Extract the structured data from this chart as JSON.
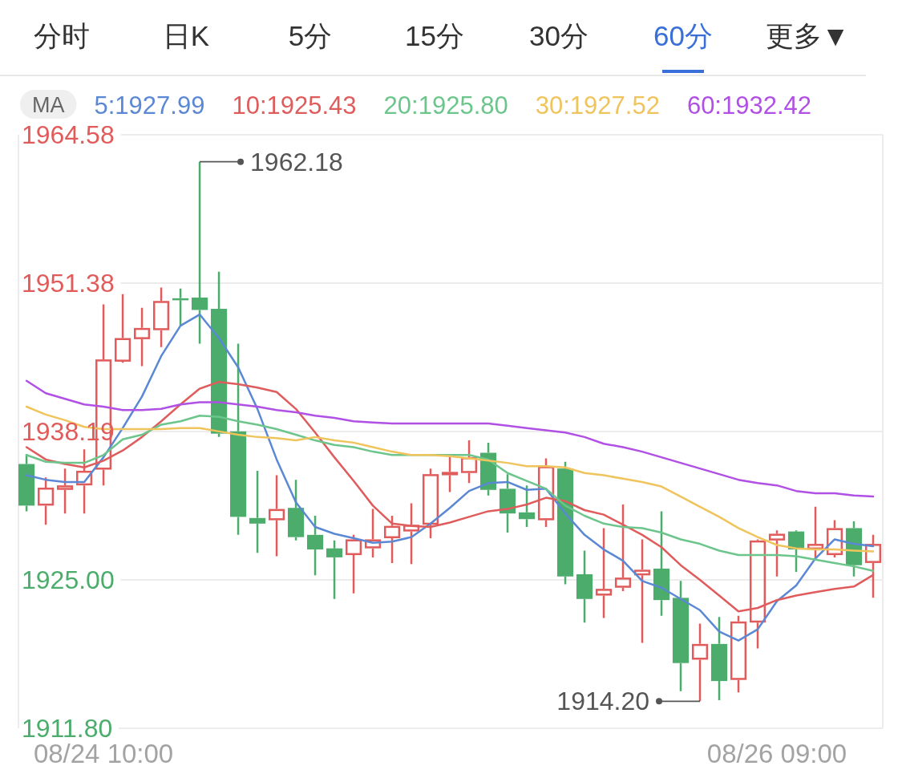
{
  "chart_data": {
    "type": "candlestick",
    "categories": [
      null,
      null,
      null,
      null,
      "08/24 10:00",
      null,
      null,
      null,
      null,
      null,
      null,
      null,
      null,
      null,
      null,
      null,
      null,
      null,
      null,
      null,
      null,
      null,
      null,
      null,
      null,
      null,
      null,
      null,
      null,
      null,
      null,
      null,
      null,
      null,
      null,
      null,
      null,
      null,
      null,
      "08/26 09:00",
      null,
      null,
      null,
      null,
      null
    ],
    "ohlc": [
      [
        1935.3,
        1936.2,
        1931.1,
        1931.6
      ],
      [
        1931.6,
        1934.1,
        1929.9,
        1933.2
      ],
      [
        1933.0,
        1934.9,
        1930.9,
        1933.4
      ],
      [
        1933.4,
        1936.6,
        1930.9,
        1934.7
      ],
      [
        1934.8,
        1949.5,
        1933.4,
        1944.6
      ],
      [
        1944.4,
        1950.4,
        1944.3,
        1946.5
      ],
      [
        1946.4,
        1949.2,
        1944.0,
        1947.4
      ],
      [
        1947.2,
        1951.0,
        1945.7,
        1949.8
      ],
      [
        1950.0,
        1950.9,
        1947.6,
        1949.9
      ],
      [
        1950.1,
        1962.18,
        1946.0,
        1949.0
      ],
      [
        1949.1,
        1952.4,
        1937.7,
        1938.0
      ],
      [
        1938.2,
        1946.0,
        1929.0,
        1930.6
      ],
      [
        1930.5,
        1934.7,
        1927.4,
        1930.0
      ],
      [
        1930.3,
        1934.3,
        1927.1,
        1931.3
      ],
      [
        1931.4,
        1933.9,
        1928.5,
        1928.8
      ],
      [
        1929.0,
        1930.7,
        1925.4,
        1927.7
      ],
      [
        1927.8,
        1928.5,
        1923.3,
        1927.0
      ],
      [
        1927.2,
        1929.0,
        1923.8,
        1928.6
      ],
      [
        1927.8,
        1931.3,
        1927.0,
        1928.6
      ],
      [
        1928.7,
        1930.7,
        1926.5,
        1929.8
      ],
      [
        1929.3,
        1931.8,
        1926.4,
        1929.9
      ],
      [
        1929.9,
        1934.9,
        1928.7,
        1934.4
      ],
      [
        1934.3,
        1936.1,
        1932.8,
        1934.6
      ],
      [
        1934.5,
        1937.4,
        1933.6,
        1935.9
      ],
      [
        1936.3,
        1937.2,
        1932.5,
        1933.0
      ],
      [
        1933.1,
        1934.4,
        1929.2,
        1930.9
      ],
      [
        1931.0,
        1933.4,
        1929.7,
        1930.4
      ],
      [
        1930.3,
        1935.8,
        1929.7,
        1935.1
      ],
      [
        1934.9,
        1935.5,
        1924.6,
        1925.3
      ],
      [
        1925.5,
        1927.6,
        1921.2,
        1923.3
      ],
      [
        1923.6,
        1929.6,
        1921.6,
        1924.2
      ],
      [
        1924.3,
        1931.7,
        1924.0,
        1925.2
      ],
      [
        1925.4,
        1928.6,
        1919.4,
        1925.9
      ],
      [
        1926.0,
        1931.1,
        1921.8,
        1923.2
      ],
      [
        1923.4,
        1924.9,
        1915.1,
        1917.6
      ],
      [
        1917.9,
        1921.1,
        1914.2,
        1919.3
      ],
      [
        1919.3,
        1921.7,
        1914.3,
        1916.0
      ],
      [
        1916.1,
        1921.8,
        1915.0,
        1921.3
      ],
      [
        1921.2,
        1928.6,
        1918.9,
        1928.5
      ],
      [
        1928.5,
        1929.4,
        1925.3,
        1929.1
      ],
      [
        1929.3,
        1929.4,
        1925.7,
        1927.7
      ],
      [
        1927.7,
        1931.5,
        1926.9,
        1928.2
      ],
      [
        1927.2,
        1930.3,
        1927.0,
        1929.6
      ],
      [
        1929.6,
        1930.2,
        1925.3,
        1926.3
      ],
      [
        1926.5,
        1929.0,
        1923.4,
        1928.2
      ]
    ],
    "colors": [
      "#4cac6c",
      "#e15b5b",
      "#e15b5b",
      "#e15b5b",
      "#e15b5b",
      "#e15b5b",
      "#e15b5b",
      "#e15b5b",
      "#4cac6c",
      "#4cac6c",
      "#4cac6c",
      "#4cac6c",
      "#4cac6c",
      "#e15b5b",
      "#4cac6c",
      "#4cac6c",
      "#4cac6c",
      "#e15b5b",
      "#e15b5b",
      "#e15b5b",
      "#e15b5b",
      "#e15b5b",
      "#e15b5b",
      "#e15b5b",
      "#4cac6c",
      "#4cac6c",
      "#4cac6c",
      "#e15b5b",
      "#4cac6c",
      "#4cac6c",
      "#e15b5b",
      "#e15b5b",
      "#e15b5b",
      "#4cac6c",
      "#4cac6c",
      "#e15b5b",
      "#4cac6c",
      "#e15b5b",
      "#e15b5b",
      "#e15b5b",
      "#4cac6c",
      "#e15b5b",
      "#e15b5b",
      "#4cac6c",
      "#e15b5b"
    ],
    "series": [
      {
        "name": "5:1927.99",
        "type": "line",
        "color": "#5b88d4",
        "values": [
          1934.3,
          1933.9,
          1933.7,
          1933.7,
          1935.9,
          1938.5,
          1941.3,
          1944.9,
          1947.6,
          1948.6,
          1946.5,
          1943.9,
          1940.2,
          1935.7,
          1931.9,
          1929.7,
          1929.1,
          1928.7,
          1928.3,
          1928.4,
          1928.8,
          1930.0,
          1931.4,
          1932.9,
          1933.6,
          1933.7,
          1933.0,
          1933.1,
          1930.9,
          1929.0,
          1927.7,
          1926.7,
          1924.9,
          1924.3,
          1923.3,
          1922.3,
          1920.4,
          1919.6,
          1920.6,
          1923.1,
          1924.5,
          1926.9,
          1928.6,
          1928.2,
          1927.99
        ]
      },
      {
        "name": "10:1925.43",
        "type": "line",
        "color": "#e05c5c",
        "values": [
          1936.8,
          1935.7,
          1935.3,
          1935.0,
          1935.6,
          1936.5,
          1937.7,
          1939.1,
          1940.6,
          1942.0,
          1942.6,
          1942.4,
          1942.1,
          1941.7,
          1940.2,
          1938.1,
          1935.9,
          1933.8,
          1931.6,
          1930.0,
          1929.8,
          1929.7,
          1930.1,
          1930.6,
          1931.1,
          1931.3,
          1931.7,
          1932.3,
          1932.0,
          1931.2,
          1930.8,
          1929.9,
          1929.0,
          1927.9,
          1926.3,
          1925.0,
          1923.6,
          1922.2,
          1922.5,
          1923.2,
          1923.6,
          1923.9,
          1924.2,
          1924.4,
          1925.43
        ]
      },
      {
        "name": "20:1925.80",
        "type": "line",
        "color": "#6cc68c",
        "values": [
          1936.1,
          1935.5,
          1935.4,
          1935.4,
          1936.1,
          1937.5,
          1937.9,
          1938.8,
          1939.1,
          1939.6,
          1939.5,
          1939.1,
          1938.8,
          1938.4,
          1937.9,
          1937.4,
          1937.0,
          1936.8,
          1936.4,
          1936.1,
          1936.1,
          1936.1,
          1936.1,
          1936.1,
          1935.7,
          1934.5,
          1933.8,
          1933.1,
          1931.6,
          1930.7,
          1930.0,
          1929.7,
          1929.6,
          1929.2,
          1928.6,
          1928.2,
          1927.6,
          1927.2,
          1927.2,
          1927.2,
          1927.1,
          1926.8,
          1926.5,
          1926.2,
          1925.8
        ]
      },
      {
        "name": "30:1927.52",
        "type": "line",
        "color": "#f0c45c",
        "values": [
          1940.4,
          1939.7,
          1939.2,
          1938.6,
          1938.4,
          1938.4,
          1938.4,
          1938.4,
          1938.5,
          1938.5,
          1938.2,
          1937.9,
          1937.7,
          1937.6,
          1937.4,
          1937.7,
          1937.4,
          1937.2,
          1936.8,
          1936.4,
          1936.1,
          1936.1,
          1936.0,
          1935.8,
          1935.6,
          1935.4,
          1935.1,
          1935.1,
          1935.0,
          1934.5,
          1934.3,
          1934.0,
          1933.7,
          1933.3,
          1932.4,
          1931.5,
          1930.6,
          1929.6,
          1928.8,
          1928.1,
          1927.8,
          1927.7,
          1927.7,
          1927.6,
          1927.52
        ]
      },
      {
        "name": "60:1932.42",
        "type": "line",
        "color": "#b050e4",
        "values": [
          1942.7,
          1941.6,
          1941.1,
          1940.6,
          1940.4,
          1940.1,
          1940.1,
          1940.2,
          1940.6,
          1940.8,
          1940.8,
          1940.6,
          1940.4,
          1940.1,
          1939.9,
          1939.6,
          1939.4,
          1939.1,
          1939.0,
          1938.9,
          1938.9,
          1938.9,
          1938.9,
          1938.9,
          1938.9,
          1938.7,
          1938.5,
          1938.3,
          1938.1,
          1937.7,
          1937.1,
          1936.8,
          1936.4,
          1935.9,
          1935.4,
          1934.9,
          1934.4,
          1933.9,
          1933.6,
          1933.4,
          1932.9,
          1932.7,
          1932.7,
          1932.5,
          1932.42
        ]
      }
    ],
    "legend_title": "MA",
    "legend": "top",
    "ylim": [
      1911.8,
      1964.58
    ],
    "yticks": [
      1964.58,
      1951.38,
      1938.19,
      {
        "value": 1925,
        "label": "1925.00"
      },
      {
        "value": 1911.8,
        "label": "1911.80"
      }
    ],
    "grid": "y",
    "annotations": [
      "分时",
      "日K",
      "5分",
      "15分",
      "30分",
      "60分",
      "更多▼",
      "1962.18",
      "1914.20"
    ]
  }
}
